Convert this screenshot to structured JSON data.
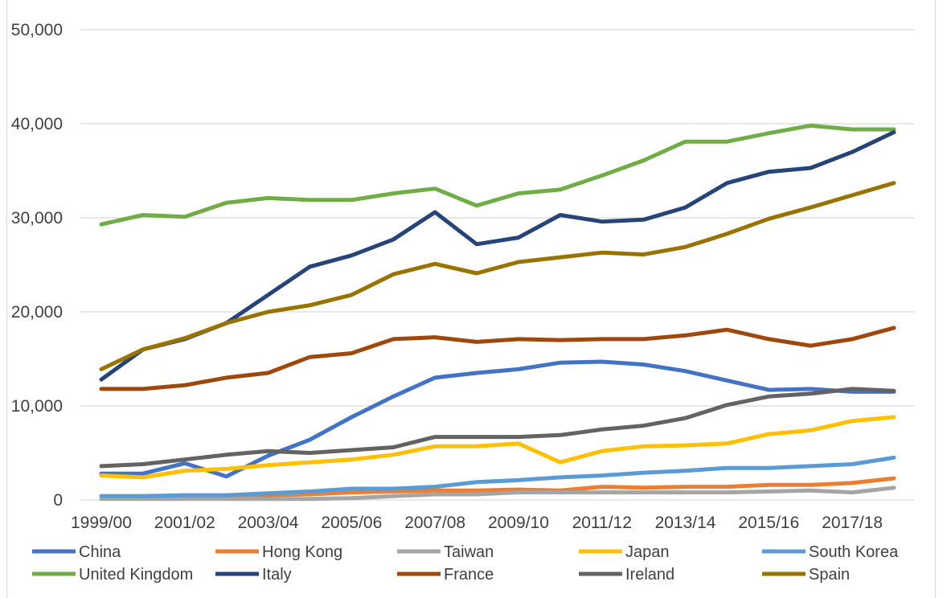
{
  "chart_data": {
    "type": "line",
    "title": "",
    "xlabel": "",
    "ylabel": "",
    "ylim": [
      0,
      50000
    ],
    "y_ticks": [
      0,
      10000,
      20000,
      30000,
      40000,
      50000
    ],
    "y_tick_labels": [
      "0",
      "10,000",
      "20,000",
      "30,000",
      "40,000",
      "50,000"
    ],
    "x": [
      "1999/00",
      "2000/01",
      "2001/02",
      "2002/03",
      "2003/04",
      "2004/05",
      "2005/06",
      "2006/07",
      "2007/08",
      "2008/09",
      "2009/10",
      "2010/11",
      "2011/12",
      "2012/13",
      "2013/14",
      "2014/15",
      "2015/16",
      "2016/17",
      "2017/18",
      "2018/19"
    ],
    "x_tick_labels": [
      "1999/00",
      "2001/02",
      "2003/04",
      "2005/06",
      "2007/08",
      "2009/10",
      "2011/12",
      "2013/14",
      "2015/16",
      "2017/18"
    ],
    "grid": "horizontal",
    "legend_position": "bottom",
    "series": [
      {
        "name": "China",
        "color": "#4472C4",
        "values": [
          2800,
          2800,
          3900,
          2500,
          4700,
          6400,
          8800,
          11000,
          13000,
          13500,
          13900,
          14600,
          14700,
          14400,
          13700,
          12700,
          11700,
          11800,
          11500,
          11500
        ]
      },
      {
        "name": "Hong Kong",
        "color": "#ED7D31",
        "values": [
          400,
          400,
          400,
          400,
          500,
          600,
          800,
          900,
          1000,
          1000,
          1100,
          1000,
          1400,
          1300,
          1400,
          1400,
          1600,
          1600,
          1800,
          2300
        ]
      },
      {
        "name": "Taiwan",
        "color": "#A5A5A5",
        "values": [
          100,
          100,
          100,
          100,
          100,
          100,
          200,
          400,
          600,
          600,
          800,
          800,
          800,
          800,
          800,
          800,
          900,
          1000,
          800,
          1300
        ]
      },
      {
        "name": "Japan",
        "color": "#FFC000",
        "values": [
          2600,
          2400,
          3100,
          3300,
          3700,
          4000,
          4300,
          4800,
          5700,
          5700,
          6000,
          4000,
          5200,
          5700,
          5800,
          6000,
          7000,
          7400,
          8400,
          8800
        ]
      },
      {
        "name": "South Korea",
        "color": "#5B9BD5",
        "values": [
          400,
          400,
          500,
          500,
          700,
          900,
          1200,
          1200,
          1400,
          1900,
          2100,
          2400,
          2600,
          2900,
          3100,
          3400,
          3400,
          3600,
          3800,
          4500
        ]
      },
      {
        "name": "United Kingdom",
        "color": "#70AD47",
        "values": [
          29300,
          30300,
          30100,
          31600,
          32100,
          31900,
          31900,
          32600,
          33100,
          31300,
          32600,
          33000,
          34500,
          36100,
          38100,
          38100,
          39000,
          39800,
          39400,
          39400
        ]
      },
      {
        "name": "Italy",
        "color": "#264478",
        "values": [
          12800,
          16000,
          17100,
          18800,
          21800,
          24800,
          26000,
          27700,
          30600,
          27200,
          27900,
          30300,
          29600,
          29800,
          31100,
          33700,
          34900,
          35300,
          37000,
          39100
        ]
      },
      {
        "name": "France",
        "color": "#9E480E",
        "values": [
          11800,
          11800,
          12200,
          13000,
          13500,
          15200,
          15600,
          17100,
          17300,
          16800,
          17100,
          17000,
          17100,
          17100,
          17500,
          18100,
          17100,
          16400,
          17100,
          18300
        ]
      },
      {
        "name": "Ireland",
        "color": "#636363",
        "values": [
          3600,
          3800,
          4300,
          4800,
          5200,
          5000,
          5300,
          5600,
          6700,
          6700,
          6700,
          6900,
          7500,
          7900,
          8700,
          10100,
          11000,
          11300,
          11800,
          11600
        ]
      },
      {
        "name": "Spain",
        "color": "#997300",
        "values": [
          13900,
          16000,
          17200,
          18800,
          20000,
          20700,
          21800,
          24000,
          25100,
          24100,
          25300,
          25800,
          26300,
          26100,
          26900,
          28300,
          29900,
          31100,
          32400,
          33700
        ]
      }
    ]
  }
}
